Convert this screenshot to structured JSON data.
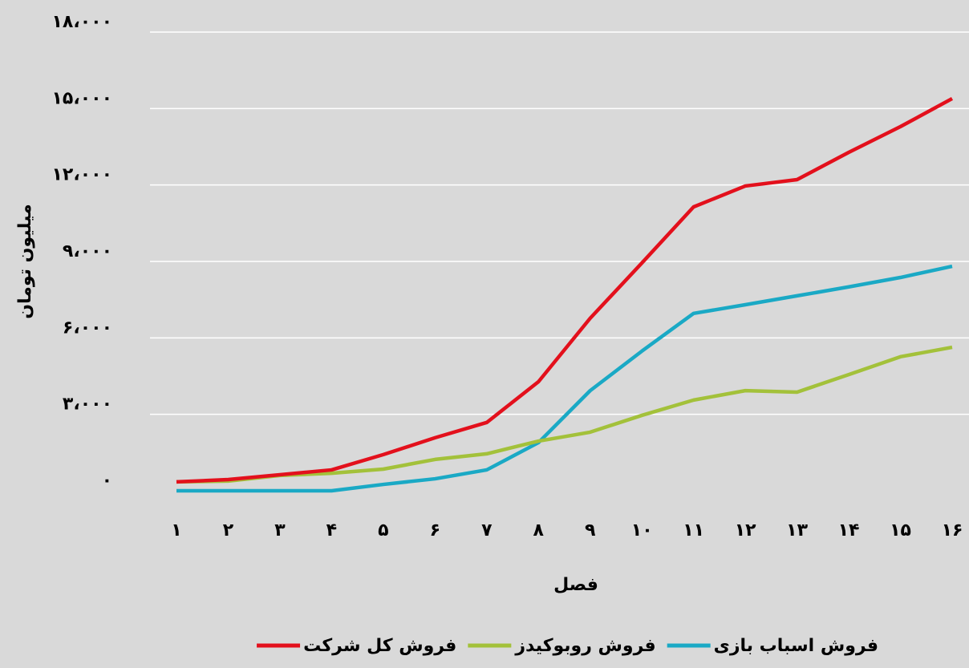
{
  "chart_data": {
    "type": "line",
    "x_label": "فصل",
    "y_label": "میلیون تومان",
    "categories": [
      "۱",
      "۲",
      "۳",
      "۴",
      "۵",
      "۶",
      "۷",
      "۸",
      "۹",
      "۱۰",
      "۱۱",
      "۱۲",
      "۱۳",
      "۱۴",
      "۱۵",
      "۱۶"
    ],
    "series": [
      {
        "name": "فروش اسباب بازی",
        "color": "#1aa9c5",
        "values": [
          0,
          0,
          0,
          0,
          250,
          470,
          820,
          1890,
          3930,
          5480,
          6960,
          7300,
          7650,
          8000,
          8370,
          8810
        ]
      },
      {
        "name": "فروش روبوکیدز",
        "color": "#a3c13a",
        "values": [
          350,
          380,
          600,
          690,
          850,
          1230,
          1450,
          1950,
          2300,
          2960,
          3560,
          3930,
          3870,
          4560,
          5260,
          5630
        ]
      },
      {
        "name": "فروش کل شرکت",
        "color": "#e3101c",
        "values": [
          350,
          440,
          630,
          820,
          1420,
          2080,
          2680,
          4280,
          6770,
          8940,
          11140,
          11960,
          12210,
          13280,
          14290,
          15390
        ]
      }
    ],
    "ylim": [
      0,
      18000
    ],
    "yticks": [
      {
        "value": 0,
        "label": "۰"
      },
      {
        "value": 3000,
        "label": "۳،۰۰۰"
      },
      {
        "value": 6000,
        "label": "۶،۰۰۰"
      },
      {
        "value": 9000,
        "label": "۹،۰۰۰"
      },
      {
        "value": 12000,
        "label": "۱۲،۰۰۰"
      },
      {
        "value": 15000,
        "label": "۱۵،۰۰۰"
      },
      {
        "value": 18000,
        "label": "۱۸،۰۰۰"
      }
    ],
    "grid": true,
    "legend": "bottom"
  }
}
